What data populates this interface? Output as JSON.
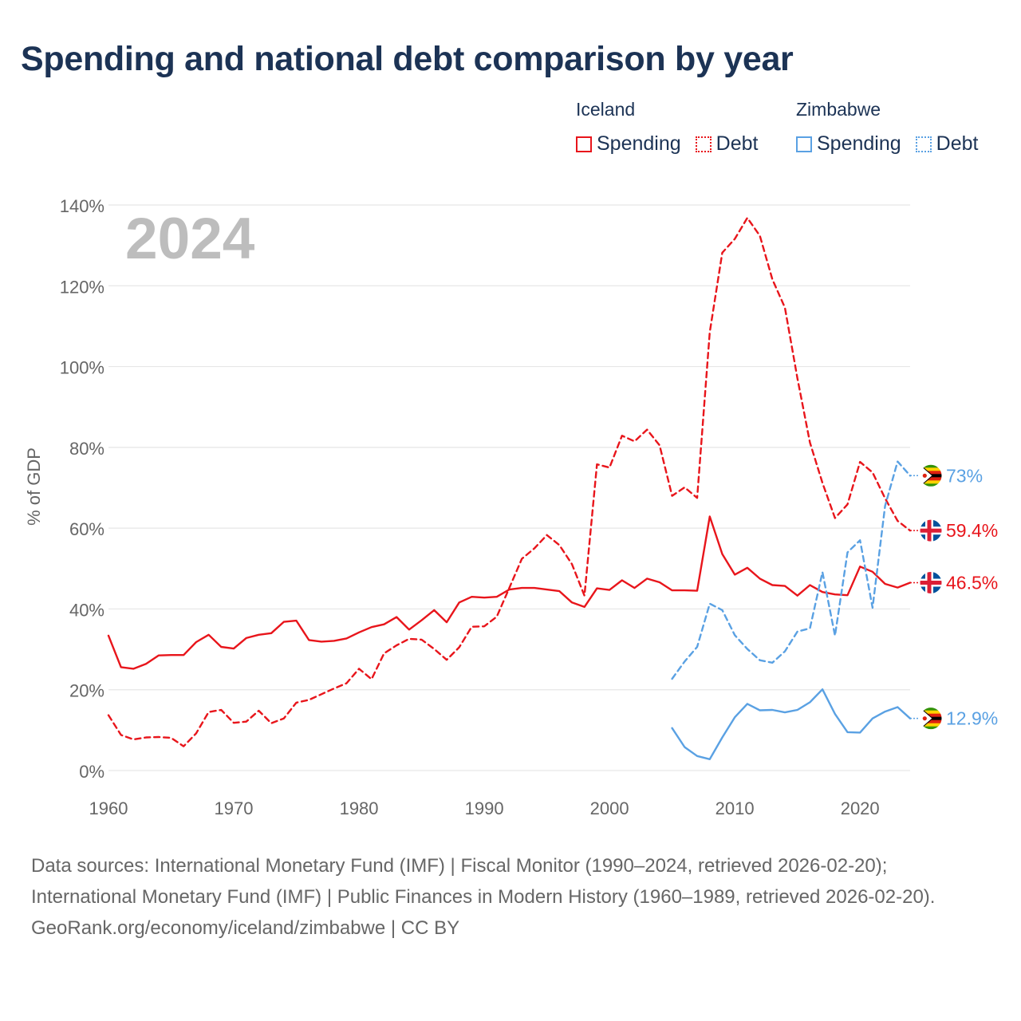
{
  "title": "Spending and national debt comparison by year",
  "legend": {
    "groups": [
      {
        "name": "Iceland",
        "items": [
          {
            "label": "Spending",
            "color": "#e8151b",
            "style": "solid"
          },
          {
            "label": "Debt",
            "color": "#e8151b",
            "style": "dotted"
          }
        ]
      },
      {
        "name": "Zimbabwe",
        "items": [
          {
            "label": "Spending",
            "color": "#5aa1e3",
            "style": "solid"
          },
          {
            "label": "Debt",
            "color": "#5aa1e3",
            "style": "dotted"
          }
        ]
      }
    ]
  },
  "footer": {
    "sources": "Data sources: International Monetary Fund (IMF) | Fiscal Monitor (1990–2024, retrieved 2026-02-20); International Monetary Fund (IMF) | Public Finances in Modern History (1960–1989, retrieved 2026-02-20).",
    "attribution": "GeoRank.org/economy/iceland/zimbabwe | CC BY"
  },
  "chart_data": {
    "type": "line",
    "title": "Spending and national debt comparison by year",
    "year_watermark": "2024",
    "xlabel": "",
    "ylabel": "% of GDP",
    "xlim": [
      1960,
      2024
    ],
    "ylim": [
      0,
      140
    ],
    "xticks": [
      1960,
      1970,
      1980,
      1990,
      2000,
      2010,
      2020
    ],
    "xtick_labels": [
      "1960",
      "1970",
      "1980",
      "1990",
      "2000",
      "2010",
      "2020"
    ],
    "yticks": [
      0,
      20,
      40,
      60,
      80,
      100,
      120,
      140
    ],
    "ytick_labels": [
      "0%",
      "20%",
      "40%",
      "60%",
      "80%",
      "100%",
      "120%",
      "140%"
    ],
    "grid": true,
    "series": [
      {
        "name": "Iceland Spending",
        "country": "Iceland",
        "metric": "Spending",
        "color": "#e8151b",
        "dash": "solid",
        "end_label": "46.5%",
        "x": [
          1960,
          1961,
          1962,
          1963,
          1964,
          1965,
          1966,
          1967,
          1968,
          1969,
          1970,
          1971,
          1972,
          1973,
          1974,
          1975,
          1976,
          1977,
          1978,
          1979,
          1980,
          1981,
          1982,
          1983,
          1984,
          1985,
          1986,
          1987,
          1988,
          1989,
          1990,
          1991,
          1992,
          1993,
          1994,
          1995,
          1996,
          1997,
          1998,
          1999,
          2000,
          2001,
          2002,
          2003,
          2004,
          2005,
          2006,
          2007,
          2008,
          2009,
          2010,
          2011,
          2012,
          2013,
          2014,
          2015,
          2016,
          2017,
          2018,
          2019,
          2020,
          2021,
          2022,
          2023,
          2024
        ],
        "values": [
          33.4,
          25.6,
          25.2,
          26.4,
          28.5,
          28.6,
          28.6,
          31.8,
          33.6,
          30.6,
          30.2,
          32.8,
          33.6,
          34.0,
          36.8,
          37.1,
          32.3,
          31.9,
          32.1,
          32.7,
          34.2,
          35.5,
          36.2,
          38.0,
          34.9,
          37.2,
          39.7,
          36.7,
          41.6,
          43.0,
          42.8,
          43.0,
          44.8,
          45.2,
          45.2,
          44.8,
          44.4,
          41.6,
          40.5,
          45.1,
          44.7,
          47.1,
          45.2,
          47.5,
          46.6,
          44.6,
          44.6,
          44.5,
          62.9,
          53.6,
          48.5,
          50.2,
          47.5,
          45.9,
          45.7,
          43.3,
          45.9,
          44.2,
          43.6,
          43.4,
          50.5,
          49.2,
          46.2,
          45.3,
          46.5
        ]
      },
      {
        "name": "Iceland Debt",
        "country": "Iceland",
        "metric": "Debt",
        "color": "#e8151b",
        "dash": "dashed",
        "end_label": "59.4%",
        "x": [
          1960,
          1961,
          1962,
          1963,
          1964,
          1965,
          1966,
          1967,
          1968,
          1969,
          1970,
          1971,
          1972,
          1973,
          1974,
          1975,
          1976,
          1977,
          1978,
          1979,
          1980,
          1981,
          1982,
          1983,
          1984,
          1985,
          1986,
          1987,
          1988,
          1989,
          1990,
          1991,
          1992,
          1993,
          1994,
          1995,
          1996,
          1997,
          1998,
          1999,
          2000,
          2001,
          2002,
          2003,
          2004,
          2005,
          2006,
          2007,
          2008,
          2009,
          2010,
          2011,
          2012,
          2013,
          2014,
          2015,
          2016,
          2017,
          2018,
          2019,
          2020,
          2021,
          2022,
          2023,
          2024
        ],
        "values": [
          13.7,
          8.8,
          7.7,
          8.2,
          8.3,
          8.1,
          6.0,
          9.2,
          14.5,
          15.0,
          11.8,
          12.1,
          14.8,
          11.7,
          12.9,
          16.8,
          17.5,
          18.9,
          20.3,
          21.6,
          25.2,
          22.6,
          29.0,
          31.0,
          32.6,
          32.4,
          30.1,
          27.4,
          30.5,
          35.6,
          35.7,
          38.1,
          45.2,
          52.4,
          55.0,
          58.3,
          55.8,
          51.1,
          43.3,
          75.8,
          75.0,
          82.9,
          81.5,
          84.4,
          80.5,
          68.0,
          70.1,
          67.5,
          108.5,
          128.2,
          131.6,
          136.8,
          132.4,
          121.6,
          114.6,
          97.1,
          81.2,
          71.2,
          62.5,
          65.9,
          76.4,
          73.8,
          67.4,
          61.8,
          59.4
        ]
      },
      {
        "name": "Zimbabwe Spending",
        "country": "Zimbabwe",
        "metric": "Spending",
        "color": "#5aa1e3",
        "dash": "solid",
        "end_label": "12.9%",
        "x": [
          2005,
          2006,
          2007,
          2008,
          2009,
          2010,
          2011,
          2012,
          2013,
          2014,
          2015,
          2016,
          2017,
          2018,
          2019,
          2020,
          2021,
          2022,
          2023,
          2024
        ],
        "values": [
          10.5,
          5.8,
          3.6,
          2.8,
          8.2,
          13.2,
          16.5,
          14.9,
          15.0,
          14.4,
          15.0,
          16.9,
          20.1,
          14.0,
          9.5,
          9.4,
          12.9,
          14.6,
          15.7,
          12.9
        ]
      },
      {
        "name": "Zimbabwe Debt",
        "country": "Zimbabwe",
        "metric": "Debt",
        "color": "#5aa1e3",
        "dash": "dashed",
        "end_label": "73%",
        "x": [
          2005,
          2006,
          2007,
          2008,
          2009,
          2010,
          2011,
          2012,
          2013,
          2014,
          2015,
          2016,
          2017,
          2018,
          2019,
          2020,
          2021,
          2022,
          2023,
          2024
        ],
        "values": [
          22.7,
          27.0,
          30.6,
          41.3,
          39.7,
          33.5,
          30.1,
          27.3,
          26.7,
          29.5,
          34.4,
          35.2,
          49.1,
          33.4,
          54.0,
          57.0,
          40.3,
          65.5,
          76.5,
          73.0
        ]
      }
    ]
  }
}
